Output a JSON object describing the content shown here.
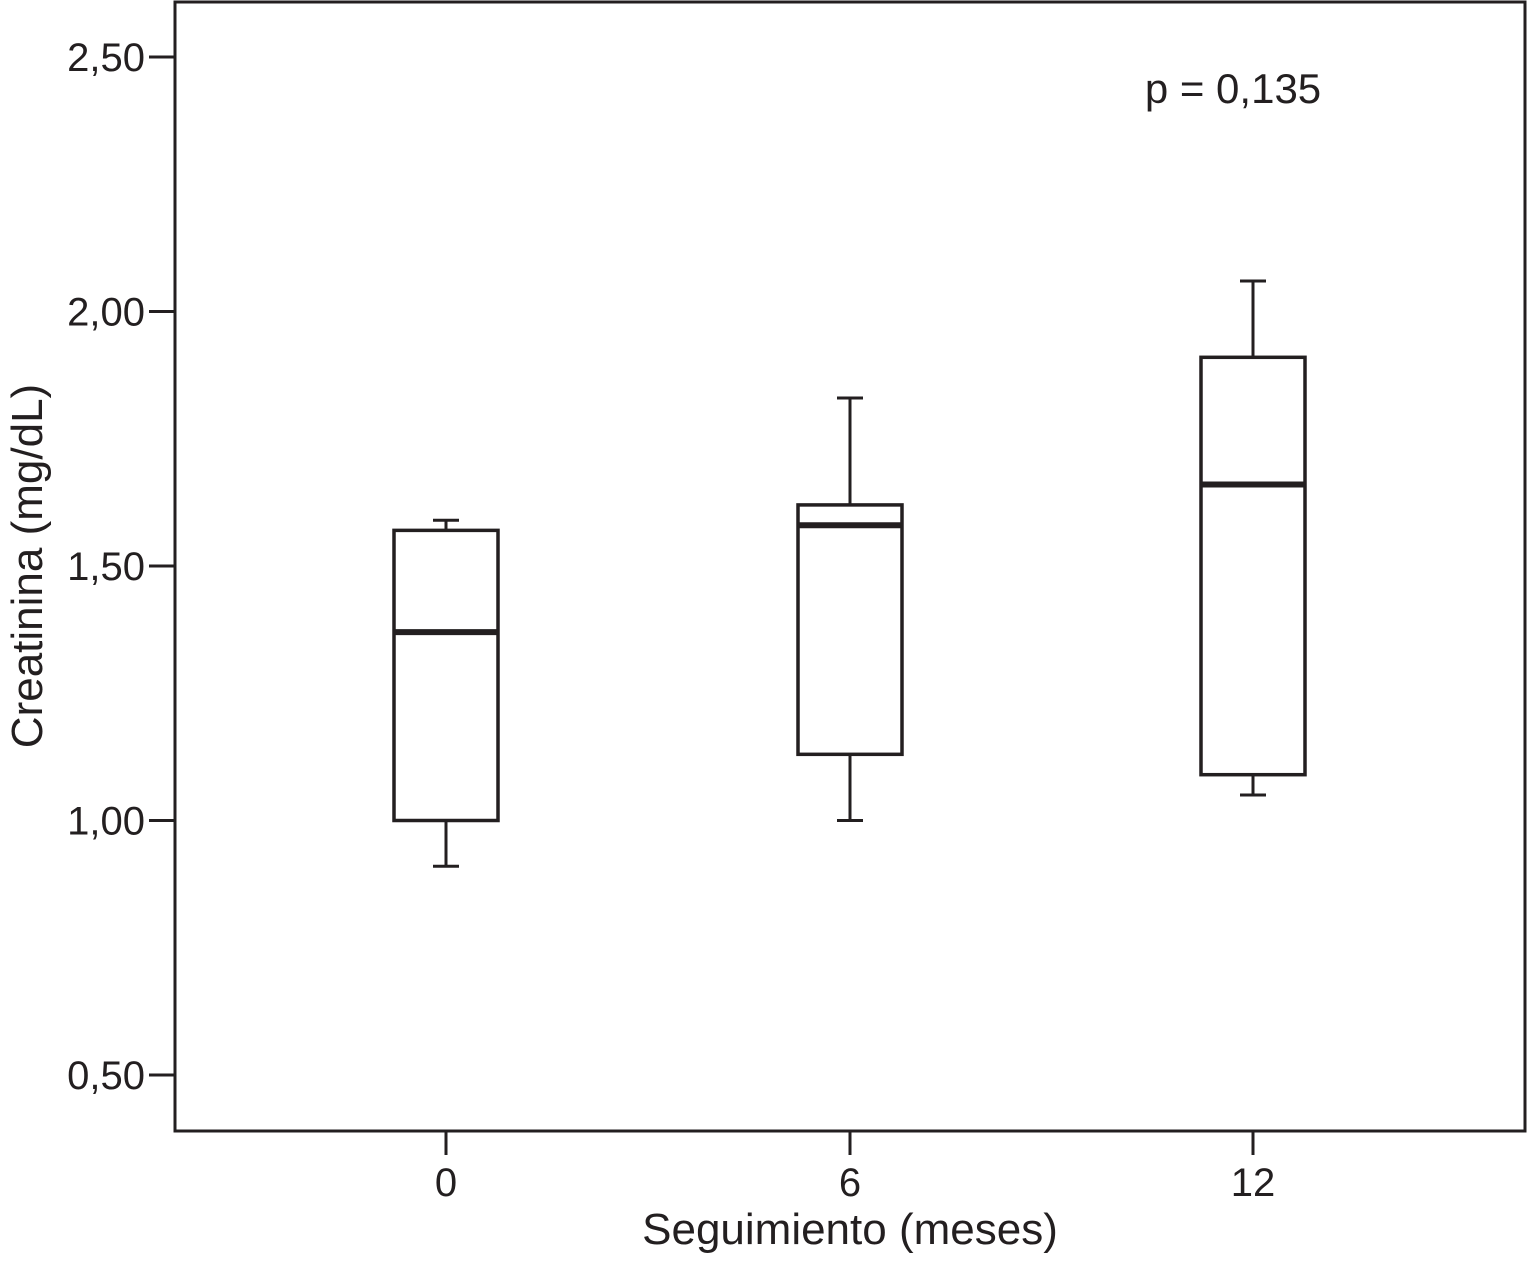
{
  "chart_data": {
    "type": "boxplot",
    "title": "",
    "xlabel": "Seguimiento (meses)",
    "ylabel": "Creatinina (mg/dL)",
    "ylim": [
      0.39,
      2.61
    ],
    "y_ticks": [
      0.5,
      1.0,
      1.5,
      2.0,
      2.5
    ],
    "y_tick_labels": [
      "0,50",
      "1,00",
      "1,50",
      "2,00",
      "2,50"
    ],
    "categories": [
      "0",
      "6",
      "12"
    ],
    "boxes": [
      {
        "category": "0",
        "whisker_low": 0.91,
        "q1": 1.0,
        "median": 1.37,
        "q3": 1.57,
        "whisker_high": 1.59
      },
      {
        "category": "6",
        "whisker_low": 1.0,
        "q1": 1.13,
        "median": 1.58,
        "q3": 1.62,
        "whisker_high": 1.83
      },
      {
        "category": "12",
        "whisker_low": 1.05,
        "q1": 1.09,
        "median": 1.66,
        "q3": 1.91,
        "whisker_high": 2.06
      }
    ],
    "annotation": "p = 0,135",
    "grid": false,
    "legend": "none",
    "colors": {
      "stroke": "#231f20",
      "fill": "#ffffff"
    }
  }
}
